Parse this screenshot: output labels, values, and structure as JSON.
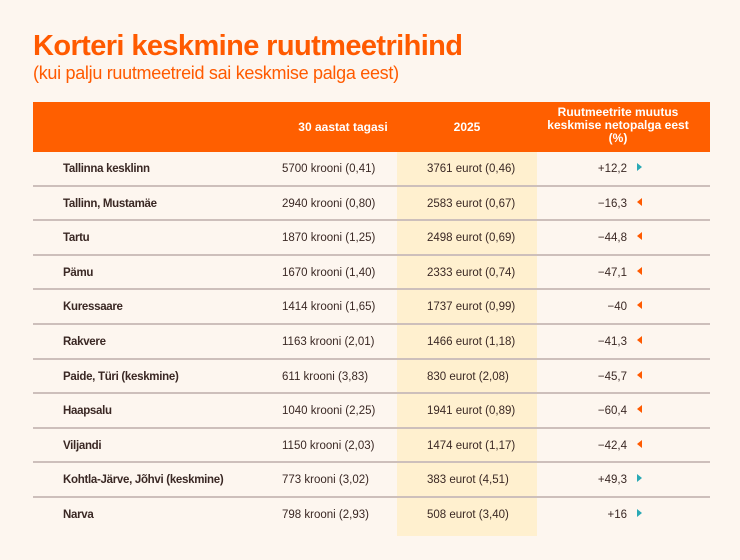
{
  "title": "Korteri keskmine ruutmeetrihind",
  "subtitle": "(kui palju ruutmeetreid sai keskmise palga eest)",
  "colors": {
    "accent": "#ff5f00",
    "highlight": "#fff0cf",
    "increase": "#2aa9b5",
    "decrease": "#ff5a00"
  },
  "table": {
    "headers": [
      "",
      "30 aastat tagasi",
      "2025",
      "Ruutmeetrite muutus keskmise netopalga eest (%)"
    ],
    "rows": [
      {
        "place": "Tallinna kesklinn",
        "then": "5700 krooni (0,41)",
        "now": "3761 eurot (0,46)",
        "change": "+12,2",
        "dir": "up"
      },
      {
        "place": "Tallinn, Mustamäe",
        "then": "2940 krooni (0,80)",
        "now": "2583 eurot (0,67)",
        "change": "−16,3",
        "dir": "down"
      },
      {
        "place": "Tartu",
        "then": "1870 krooni (1,25)",
        "now": "2498 eurot (0,69)",
        "change": "−44,8",
        "dir": "down"
      },
      {
        "place": "Pämu",
        "then": "1670 krooni (1,40)",
        "now": "2333 eurot (0,74)",
        "change": "−47,1",
        "dir": "down"
      },
      {
        "place": "Kuressaare",
        "then": "1414 krooni (1,65)",
        "now": "1737 eurot (0,99)",
        "change": "−40",
        "dir": "down"
      },
      {
        "place": "Rakvere",
        "then": "1163 krooni (2,01)",
        "now": "1466 eurot (1,18)",
        "change": "−41,3",
        "dir": "down"
      },
      {
        "place": "Paide, Türi (keskmine)",
        "then": "611 krooni (3,83)",
        "now": "830 eurot (2,08)",
        "change": "−45,7",
        "dir": "down"
      },
      {
        "place": "Haapsalu",
        "then": "1040 krooni (2,25)",
        "now": "1941 eurot (0,89)",
        "change": "−60,4",
        "dir": "down"
      },
      {
        "place": "Viljandi",
        "then": "1150 krooni (2,03)",
        "now": "1474 eurot (1,17)",
        "change": "−42,4",
        "dir": "down"
      },
      {
        "place": "Kohtla-Järve, Jõhvi (keskmine)",
        "then": "773 krooni (3,02)",
        "now": "383 eurot (4,51)",
        "change": "+49,3",
        "dir": "up"
      },
      {
        "place": "Narva",
        "then": "798 krooni (2,93)",
        "now": "508 eurot (3,40)",
        "change": "+16",
        "dir": "up"
      }
    ]
  }
}
